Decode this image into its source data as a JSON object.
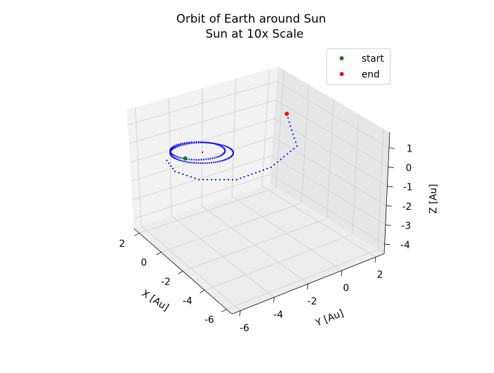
{
  "chart_data": {
    "type": "scatter",
    "projection": "3d",
    "title": [
      "Orbit of Earth around Sun",
      "Sun at 10x Scale"
    ],
    "xlabel": "X [Au]",
    "ylabel": "Y [Au]",
    "zlabel": "Z [Au]",
    "xlim": [
      -6.5,
      2.5
    ],
    "ylim": [
      -6.5,
      2.5
    ],
    "zlim": [
      -4.5,
      1.8
    ],
    "xticks": [
      2,
      0,
      -2,
      -4,
      -6
    ],
    "yticks": [
      2,
      0,
      -2,
      -4,
      -6
    ],
    "zticks": [
      1,
      0,
      -1,
      -2,
      -3,
      -4
    ],
    "grid": true,
    "legend_position": "top-right",
    "series": [
      {
        "name": "start",
        "color": "#008000",
        "points": [
          [
            0.72,
            0.76,
            0.0
          ]
        ]
      },
      {
        "name": "end",
        "color": "#ff0000",
        "points": [
          [
            -5.9,
            -3.7,
            0.16
          ]
        ]
      }
    ],
    "orbit_color": "#0000ff",
    "sun_color": "#ff0000"
  }
}
